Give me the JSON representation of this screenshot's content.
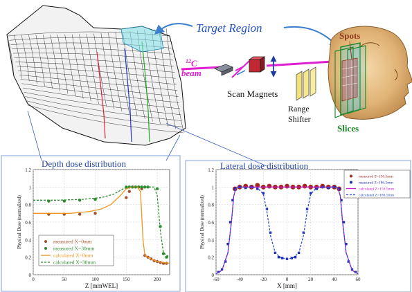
{
  "diagram": {
    "target_region_label": "Target Region",
    "beam_label_sup": "12",
    "beam_label_elem": "C",
    "beam_label_word": "beam",
    "scan_magnets_label": "Scan Magnets",
    "range_shifter_line1": "Range",
    "range_shifter_line2": "Shifter",
    "spots_label": "Spots",
    "slices_label": "Slices",
    "colors": {
      "title_blue": "#1f4fbf",
      "beam_magenta": "#e21fd0",
      "spots_brown": "#8b3a1a",
      "slices_green": "#1f8a2a"
    }
  },
  "chart_data": [
    {
      "type": "scatter",
      "title": "Depth dose distribution",
      "xlabel": "Z [mmWEL]",
      "ylabel": "Physical Dose (normalized)",
      "xlim": [
        0,
        220
      ],
      "ylim": [
        0,
        1.2
      ],
      "xticks": [
        0,
        50,
        100,
        150,
        200
      ],
      "yticks": [
        0,
        0.2,
        0.4,
        0.6,
        0.8,
        1,
        1.2
      ],
      "grid": true,
      "legend_position": "bottom-left",
      "series": [
        {
          "name": "measured X=0mm",
          "kind": "points",
          "color": "#a0522d",
          "x": [
            25,
            50,
            75,
            100,
            150,
            155,
            160,
            165,
            170,
            175,
            180,
            185,
            190,
            195,
            200,
            205,
            210,
            215
          ],
          "y": [
            0.69,
            0.69,
            0.69,
            0.7,
            0.88,
            0.95,
            1.0,
            1.0,
            1.0,
            0.98,
            0.22,
            0.2,
            0.18,
            0.16,
            0.15,
            0.14,
            0.13,
            0.13
          ]
        },
        {
          "name": "measured X=30mm",
          "kind": "points",
          "color": "#2e8b2e",
          "x": [
            25,
            50,
            75,
            100,
            150,
            155,
            160,
            165,
            170,
            175,
            180,
            185,
            200,
            205,
            210,
            215
          ],
          "y": [
            0.84,
            0.84,
            0.85,
            0.86,
            1.0,
            1.0,
            1.0,
            1.0,
            1.0,
            1.0,
            1.0,
            1.0,
            0.98,
            0.55,
            0.24,
            0.2
          ]
        },
        {
          "name": "calculated X=0mm",
          "kind": "line",
          "color": "#f0961e",
          "x": [
            0,
            30,
            60,
            90,
            110,
            125,
            140,
            150,
            160,
            168,
            173,
            177,
            180,
            190,
            200,
            210,
            220
          ],
          "y": [
            0.7,
            0.7,
            0.7,
            0.72,
            0.75,
            0.8,
            0.9,
            0.98,
            1.0,
            1.0,
            0.95,
            0.4,
            0.22,
            0.18,
            0.15,
            0.14,
            0.13
          ]
        },
        {
          "name": "calculated X=30mm",
          "kind": "dashed",
          "color": "#2e8b2e",
          "x": [
            0,
            40,
            80,
            110,
            130,
            145,
            155,
            170,
            185,
            195,
            200,
            205,
            210,
            220
          ],
          "y": [
            0.85,
            0.85,
            0.86,
            0.88,
            0.92,
            0.98,
            1.0,
            1.0,
            1.0,
            1.0,
            0.9,
            0.5,
            0.25,
            0.2
          ]
        }
      ]
    },
    {
      "type": "scatter",
      "title": "Lateral dose distribution",
      "xlabel": "X [mm]",
      "ylabel": "Physical Dose (normalized)",
      "xlim": [
        -60,
        60
      ],
      "ylim": [
        0,
        1.2
      ],
      "xticks": [
        -60,
        -40,
        -20,
        0,
        20,
        40,
        60
      ],
      "yticks": [
        0,
        0.2,
        0.4,
        0.6,
        0.8,
        1,
        1.2
      ],
      "grid": true,
      "legend_position": "top-right",
      "series": [
        {
          "name": "measured Z=156.5mm",
          "kind": "points",
          "color": "#a0281e",
          "x": [
            -44,
            -40,
            -35,
            -30,
            -25,
            -20,
            -15,
            -10,
            -5,
            0,
            5,
            10,
            15,
            20,
            25,
            30,
            35,
            40,
            44
          ],
          "y": [
            0.98,
            1.0,
            1.01,
            1.0,
            1.02,
            1.0,
            1.01,
            1.0,
            1.0,
            1.01,
            1.0,
            1.0,
            1.01,
            1.0,
            1.0,
            1.01,
            1.0,
            1.0,
            0.98
          ]
        },
        {
          "name": "measured Z=186.5mm",
          "kind": "points",
          "color": "#1e28b4",
          "x": [
            -58,
            -55,
            -52,
            -50,
            -48,
            -46,
            -44,
            -40,
            -35,
            -30,
            -25,
            -20,
            -17,
            -14,
            -10,
            -7,
            -4,
            0,
            4,
            7,
            10,
            14,
            17,
            20,
            25,
            30,
            35,
            40,
            44,
            46,
            48,
            50,
            52,
            55,
            58
          ],
          "y": [
            0.03,
            0.06,
            0.15,
            0.35,
            0.6,
            0.85,
            0.98,
            1.0,
            0.99,
            1.0,
            0.98,
            0.93,
            0.75,
            0.48,
            0.25,
            0.2,
            0.19,
            0.18,
            0.19,
            0.2,
            0.25,
            0.48,
            0.75,
            0.93,
            0.98,
            1.0,
            0.99,
            1.0,
            0.98,
            0.85,
            0.6,
            0.35,
            0.15,
            0.06,
            0.03
          ]
        },
        {
          "name": "calculated Z=156.5mm",
          "kind": "line",
          "color": "#c81ec8",
          "x": [
            -60,
            -55,
            -50,
            -47,
            -45,
            -43,
            -40,
            0,
            40,
            43,
            45,
            47,
            50,
            55,
            60
          ],
          "y": [
            0.01,
            0.05,
            0.25,
            0.6,
            0.9,
            0.99,
            1.0,
            1.0,
            1.0,
            0.99,
            0.9,
            0.6,
            0.25,
            0.05,
            0.01
          ]
        },
        {
          "name": "calculated Z=186.5mm",
          "kind": "dashed",
          "color": "#2850c8",
          "x": [
            -60,
            -55,
            -50,
            -47,
            -45,
            -43,
            -40,
            -25,
            -20,
            -17,
            -14,
            -10,
            -5,
            0,
            5,
            10,
            14,
            17,
            20,
            25,
            40,
            43,
            45,
            47,
            50,
            55,
            60
          ],
          "y": [
            0.01,
            0.05,
            0.25,
            0.6,
            0.9,
            0.99,
            1.0,
            0.99,
            0.92,
            0.72,
            0.45,
            0.25,
            0.19,
            0.18,
            0.19,
            0.25,
            0.45,
            0.72,
            0.92,
            0.99,
            1.0,
            0.99,
            0.9,
            0.6,
            0.25,
            0.05,
            0.01
          ]
        }
      ]
    }
  ]
}
